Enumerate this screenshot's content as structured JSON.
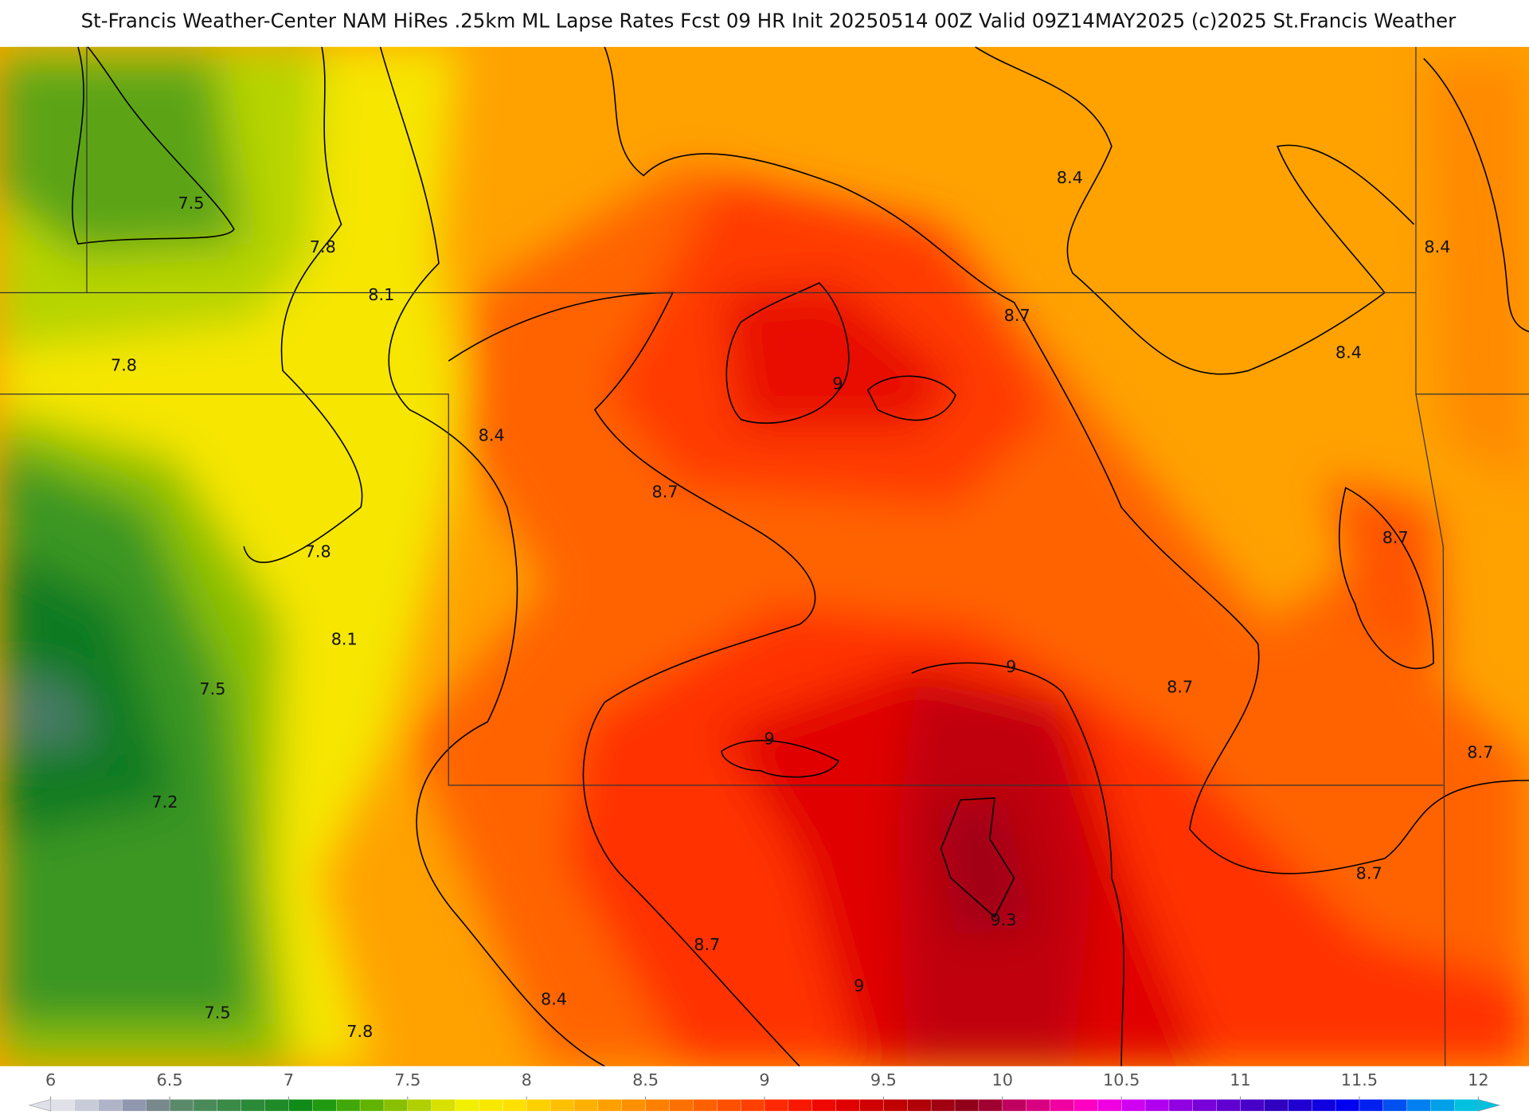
{
  "header": {
    "title": "St-Francis Weather-Center NAM HiRes .25km ML Lapse Rates  Fcst 09 HR Init 20250514 00Z  Valid 09Z14MAY2025    (c)2025 St.Francis Weather"
  },
  "map": {
    "contour_labels": [
      "7.5",
      "7.8",
      "8.1",
      "7.8",
      "8.4",
      "8.7",
      "9",
      "8.7",
      "8.4",
      "8.4",
      "8.4",
      "7.8",
      "8.1",
      "7.5",
      "7.2",
      "8.7",
      "9",
      "8.7",
      "8.7",
      "9",
      "9.3",
      "8.7",
      "8.4",
      "9",
      "8.7",
      "7.5",
      "7.8"
    ]
  },
  "colorbar": {
    "lim": [
      6,
      12
    ],
    "ticks": [
      6,
      6.5,
      7,
      7.5,
      8,
      8.5,
      9,
      9.5,
      10,
      10.5,
      11,
      11.5,
      12
    ],
    "colors": [
      "#e0e0e8",
      "#c8ccd8",
      "#b0b4c8",
      "#9098b0",
      "#78888c",
      "#5a8a6a",
      "#4a8a5a",
      "#3a8a48",
      "#2a8a38",
      "#1e8a28",
      "#108a18",
      "#209a10",
      "#40a808",
      "#60b400",
      "#88c000",
      "#b0d000",
      "#d8e000",
      "#f0f000",
      "#f8e800",
      "#ffe000",
      "#ffd000",
      "#ffc000",
      "#ffb000",
      "#ffa000",
      "#ff9000",
      "#ff8000",
      "#ff7000",
      "#ff6000",
      "#ff5000",
      "#ff4000",
      "#ff2800",
      "#f81800",
      "#f00800",
      "#e00000",
      "#d00000",
      "#c00000",
      "#b00008",
      "#a00010",
      "#900018",
      "#a00030",
      "#c00060",
      "#d80080",
      "#f000a0",
      "#ff00c0",
      "#f000e0",
      "#d000f0",
      "#b000f0",
      "#9000e0",
      "#7800d8",
      "#6000d0",
      "#4800c8",
      "#3000c0",
      "#2000d0",
      "#1000e0",
      "#0000f0",
      "#0020f0",
      "#0050f0",
      "#0080f0",
      "#00a0e8",
      "#00c0e0"
    ]
  }
}
